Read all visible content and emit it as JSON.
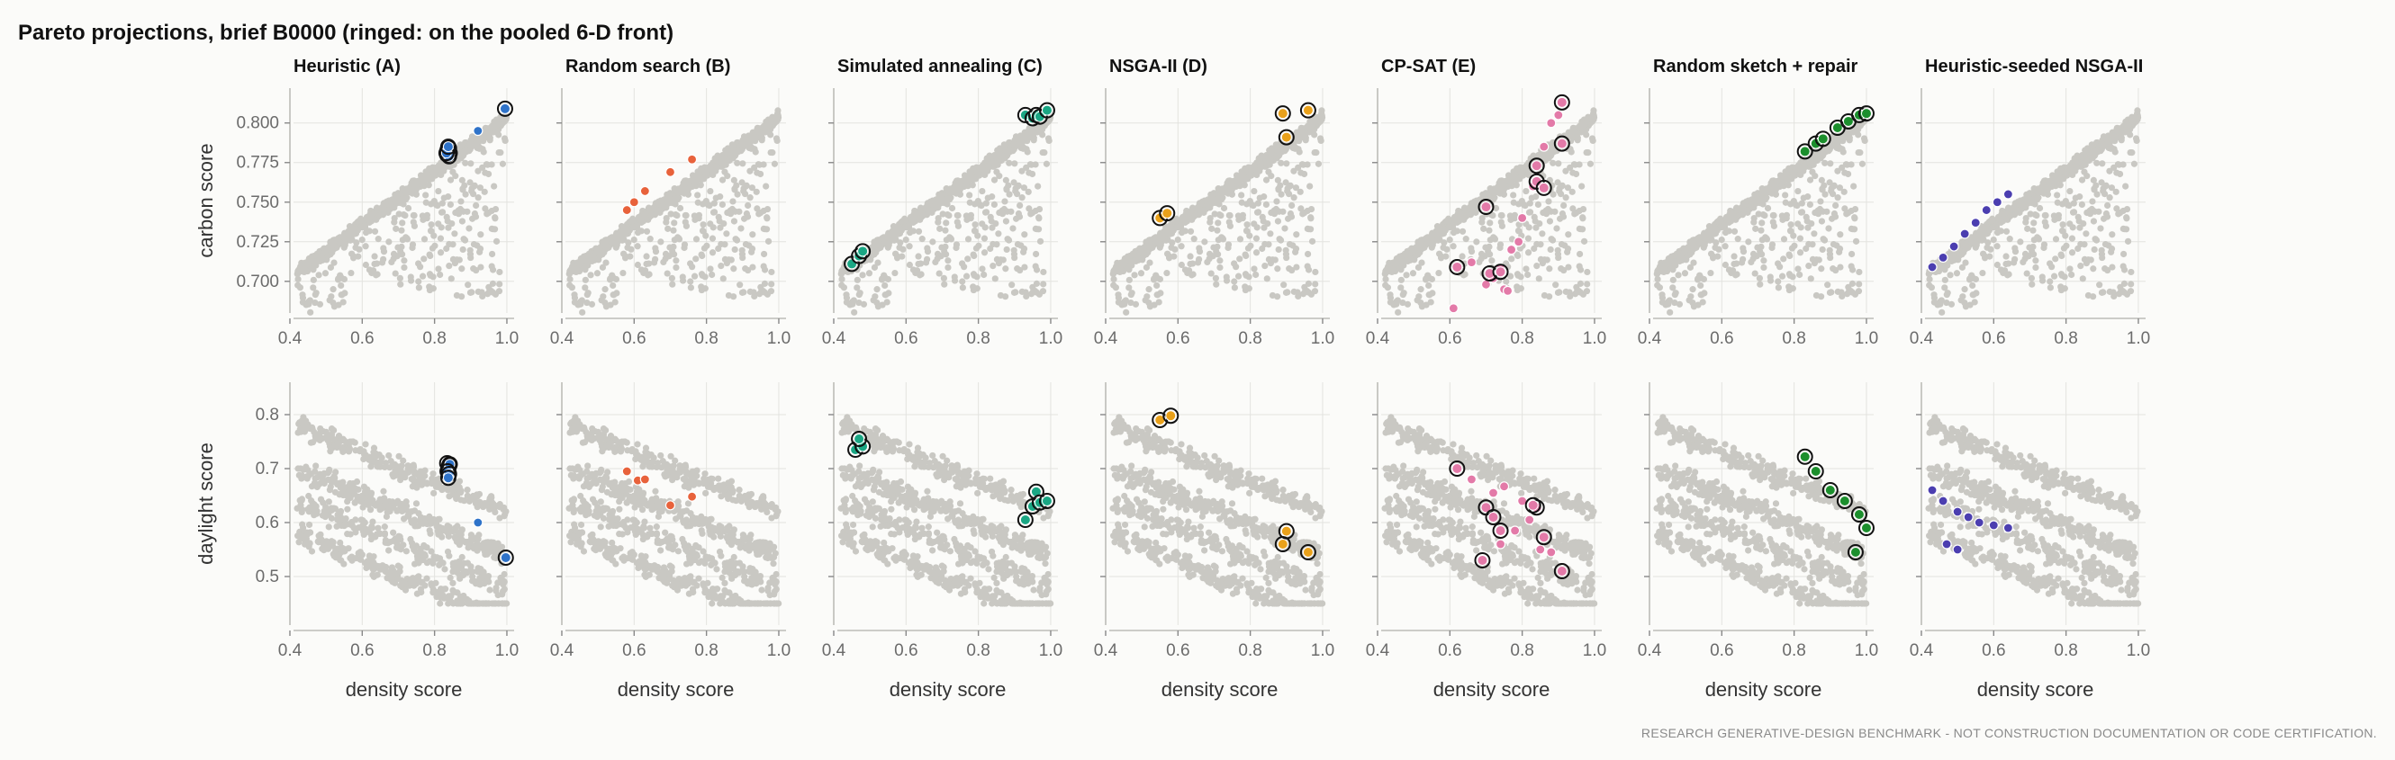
{
  "suptitle": "Pareto projections, brief B0000 (ringed: on the pooled 6-D front)",
  "footer": "RESEARCH GENERATIVE-DESIGN BENCHMARK - NOT CONSTRUCTION DOCUMENTATION OR CODE CERTIFICATION.",
  "chart_data": {
    "type": "scatter",
    "grid": true,
    "x": {
      "label": "density score",
      "lim": [
        0.41,
        1.02
      ],
      "ticks": [
        0.4,
        0.6,
        0.8,
        1.0
      ],
      "tick_labels": [
        "0.4",
        "0.6",
        "0.8",
        "1.0"
      ]
    },
    "rows": [
      {
        "ylabel": "carbon score",
        "ylim": [
          0.68,
          0.822
        ],
        "ticks": [
          0.7,
          0.725,
          0.75,
          0.775,
          0.8
        ],
        "tick_labels": [
          "0.700",
          "0.725",
          "0.750",
          "0.775",
          "0.800"
        ]
      },
      {
        "ylabel": "daylight score",
        "ylim": [
          0.41,
          0.86
        ],
        "ticks": [
          0.5,
          0.6,
          0.7,
          0.8
        ],
        "tick_labels": [
          "0.5",
          "0.6",
          "0.7",
          "0.8"
        ]
      }
    ],
    "background": {
      "color": "#c9c8c3",
      "description_note": "",
      "points": []
    },
    "panels": [
      {
        "title": "Heuristic (A)",
        "color": "#2f73c9",
        "carbon": [
          [
            0.835,
            0.78
          ],
          [
            0.838,
            0.782
          ],
          [
            0.84,
            0.784
          ],
          [
            0.842,
            0.781
          ],
          [
            0.836,
            0.783
          ],
          [
            0.84,
            0.779
          ],
          [
            0.833,
            0.781
          ],
          [
            0.838,
            0.785
          ],
          [
            0.92,
            0.795
          ],
          [
            0.995,
            0.809
          ]
        ],
        "carbon_ringed": [
          [
            0.835,
            0.78
          ],
          [
            0.838,
            0.782
          ],
          [
            0.84,
            0.784
          ],
          [
            0.842,
            0.781
          ],
          [
            0.836,
            0.783
          ],
          [
            0.84,
            0.779
          ],
          [
            0.833,
            0.781
          ],
          [
            0.838,
            0.785
          ],
          [
            0.995,
            0.809
          ]
        ],
        "daylight": [
          [
            0.835,
            0.71
          ],
          [
            0.84,
            0.705
          ],
          [
            0.838,
            0.7
          ],
          [
            0.842,
            0.708
          ],
          [
            0.836,
            0.695
          ],
          [
            0.84,
            0.69
          ],
          [
            0.838,
            0.683
          ],
          [
            0.92,
            0.6
          ],
          [
            0.997,
            0.535
          ]
        ],
        "daylight_ringed": [
          [
            0.835,
            0.71
          ],
          [
            0.84,
            0.705
          ],
          [
            0.838,
            0.7
          ],
          [
            0.842,
            0.708
          ],
          [
            0.836,
            0.695
          ],
          [
            0.84,
            0.69
          ],
          [
            0.838,
            0.683
          ],
          [
            0.997,
            0.535
          ]
        ]
      },
      {
        "title": "Random search (B)",
        "color": "#e8623b",
        "carbon": [
          [
            0.58,
            0.745
          ],
          [
            0.6,
            0.75
          ],
          [
            0.63,
            0.757
          ],
          [
            0.7,
            0.769
          ],
          [
            0.76,
            0.777
          ]
        ],
        "carbon_ringed": [],
        "daylight": [
          [
            0.58,
            0.695
          ],
          [
            0.61,
            0.678
          ],
          [
            0.63,
            0.68
          ],
          [
            0.7,
            0.632
          ],
          [
            0.76,
            0.648
          ]
        ],
        "daylight_ringed": []
      },
      {
        "title": "Simulated annealing (C)",
        "color": "#1aa784",
        "carbon": [],
        "carbon_ringed": [
          [
            0.45,
            0.711
          ],
          [
            0.47,
            0.716
          ],
          [
            0.48,
            0.719
          ],
          [
            0.93,
            0.805
          ],
          [
            0.95,
            0.803
          ],
          [
            0.96,
            0.805
          ],
          [
            0.97,
            0.804
          ],
          [
            0.99,
            0.808
          ]
        ],
        "daylight": [],
        "daylight_ringed": [
          [
            0.46,
            0.735
          ],
          [
            0.48,
            0.741
          ],
          [
            0.47,
            0.755
          ],
          [
            0.93,
            0.605
          ],
          [
            0.95,
            0.63
          ],
          [
            0.96,
            0.657
          ],
          [
            0.97,
            0.637
          ],
          [
            0.99,
            0.64
          ]
        ]
      },
      {
        "title": "NSGA-II (D)",
        "color": "#e9a11b",
        "carbon": [],
        "carbon_ringed": [
          [
            0.55,
            0.74
          ],
          [
            0.57,
            0.743
          ],
          [
            0.89,
            0.806
          ],
          [
            0.96,
            0.808
          ],
          [
            0.9,
            0.791
          ]
        ],
        "daylight": [],
        "daylight_ringed": [
          [
            0.55,
            0.79
          ],
          [
            0.58,
            0.798
          ],
          [
            0.89,
            0.56
          ],
          [
            0.96,
            0.545
          ],
          [
            0.9,
            0.584
          ]
        ]
      },
      {
        "title": "CP-SAT (E)",
        "color": "#e37aa8",
        "carbon": [
          [
            0.61,
            0.683
          ],
          [
            0.66,
            0.712
          ],
          [
            0.7,
            0.698
          ],
          [
            0.72,
            0.702
          ],
          [
            0.75,
            0.695
          ],
          [
            0.77,
            0.72
          ],
          [
            0.8,
            0.74
          ],
          [
            0.83,
            0.76
          ],
          [
            0.86,
            0.785
          ],
          [
            0.88,
            0.8
          ],
          [
            0.9,
            0.805
          ],
          [
            0.76,
            0.694
          ],
          [
            0.74,
            0.708
          ],
          [
            0.79,
            0.725
          ]
        ],
        "carbon_ringed": [
          [
            0.62,
            0.709
          ],
          [
            0.7,
            0.747
          ],
          [
            0.71,
            0.705
          ],
          [
            0.74,
            0.706
          ],
          [
            0.84,
            0.773
          ],
          [
            0.84,
            0.763
          ],
          [
            0.86,
            0.759
          ],
          [
            0.91,
            0.787
          ],
          [
            0.91,
            0.813
          ]
        ],
        "daylight": [
          [
            0.66,
            0.68
          ],
          [
            0.72,
            0.655
          ],
          [
            0.75,
            0.667
          ],
          [
            0.8,
            0.64
          ],
          [
            0.82,
            0.605
          ],
          [
            0.85,
            0.55
          ],
          [
            0.88,
            0.545
          ],
          [
            0.78,
            0.585
          ],
          [
            0.74,
            0.56
          ]
        ],
        "daylight_ringed": [
          [
            0.62,
            0.7
          ],
          [
            0.7,
            0.628
          ],
          [
            0.72,
            0.61
          ],
          [
            0.74,
            0.585
          ],
          [
            0.84,
            0.628
          ],
          [
            0.86,
            0.573
          ],
          [
            0.91,
            0.51
          ],
          [
            0.69,
            0.53
          ],
          [
            0.83,
            0.632
          ]
        ]
      },
      {
        "title": "Random sketch + repair",
        "color": "#1c8f2d",
        "carbon": [],
        "carbon_ringed": [
          [
            0.83,
            0.782
          ],
          [
            0.86,
            0.787
          ],
          [
            0.88,
            0.79
          ],
          [
            0.92,
            0.797
          ],
          [
            0.95,
            0.801
          ],
          [
            0.98,
            0.805
          ],
          [
            1.0,
            0.806
          ]
        ],
        "daylight": [],
        "daylight_ringed": [
          [
            0.83,
            0.722
          ],
          [
            0.86,
            0.695
          ],
          [
            0.9,
            0.66
          ],
          [
            0.94,
            0.64
          ],
          [
            0.98,
            0.615
          ],
          [
            1.0,
            0.59
          ],
          [
            0.97,
            0.545
          ]
        ]
      },
      {
        "title": "Heuristic-seeded NSGA-II",
        "color": "#4b3eb0",
        "carbon": [
          [
            0.43,
            0.709
          ],
          [
            0.46,
            0.715
          ],
          [
            0.49,
            0.722
          ],
          [
            0.52,
            0.73
          ],
          [
            0.55,
            0.737
          ],
          [
            0.58,
            0.745
          ],
          [
            0.61,
            0.75
          ],
          [
            0.64,
            0.755
          ]
        ],
        "carbon_ringed": [],
        "daylight": [
          [
            0.43,
            0.66
          ],
          [
            0.46,
            0.64
          ],
          [
            0.5,
            0.62
          ],
          [
            0.53,
            0.61
          ],
          [
            0.56,
            0.6
          ],
          [
            0.6,
            0.595
          ],
          [
            0.64,
            0.59
          ],
          [
            0.47,
            0.56
          ],
          [
            0.5,
            0.55
          ]
        ],
        "daylight_ringed": []
      }
    ]
  }
}
